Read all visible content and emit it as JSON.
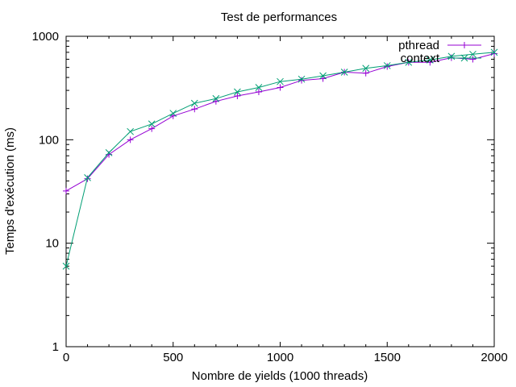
{
  "chart_data": {
    "type": "line",
    "title": "Test de performances",
    "xlabel": "Nombre de yields (1000 threads)",
    "ylabel": "Temps d'exécution (ms)",
    "xlim": [
      0,
      2000
    ],
    "ylim": [
      1,
      1000
    ],
    "y_scale": "log",
    "x_ticks": [
      0,
      500,
      1000,
      1500,
      2000
    ],
    "y_ticks": [
      1,
      10,
      100,
      1000
    ],
    "grid": false,
    "legend_position": "top-right",
    "x": [
      0,
      100,
      200,
      300,
      400,
      500,
      600,
      700,
      800,
      900,
      1000,
      1100,
      1200,
      1300,
      1400,
      1500,
      1600,
      1700,
      1800,
      1900,
      2000
    ],
    "series": [
      {
        "name": "pthread",
        "color": "#9400d3",
        "marker": "plus",
        "values": [
          32,
          42,
          72,
          100,
          128,
          170,
          198,
          235,
          265,
          290,
          320,
          375,
          390,
          450,
          440,
          510,
          560,
          560,
          620,
          600,
          680
        ]
      },
      {
        "name": "context",
        "color": "#009e73",
        "marker": "cross",
        "values": [
          6,
          43,
          75,
          120,
          142,
          180,
          225,
          250,
          290,
          320,
          365,
          385,
          415,
          450,
          490,
          520,
          560,
          590,
          640,
          670,
          700
        ]
      }
    ]
  }
}
